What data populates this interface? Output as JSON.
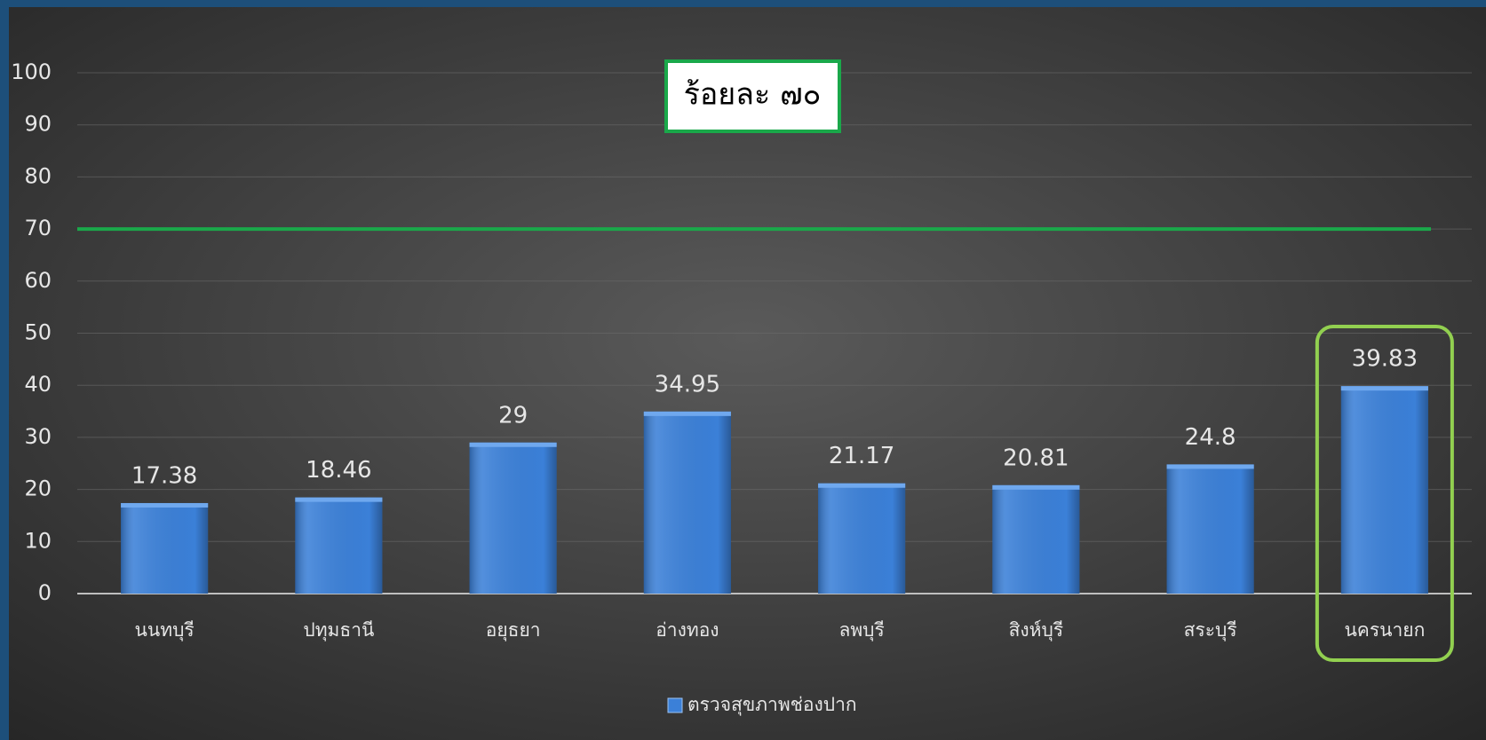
{
  "chart_data": {
    "type": "bar",
    "categories": [
      "นนทบุรี",
      "ปทุมธานี",
      "อยุธยา",
      "อ่างทอง",
      "ลพบุรี",
      "สิงห์บุรี",
      "สระบุรี",
      "นครนายก"
    ],
    "series": [
      {
        "name": "ตรวจสุขภาพช่องปาก",
        "color": "#3b80d8",
        "values": [
          17.38,
          18.46,
          29,
          34.95,
          21.17,
          20.81,
          24.8,
          39.83
        ]
      }
    ],
    "ylim": [
      0,
      100
    ],
    "yticks": [
      0,
      10,
      20,
      30,
      40,
      50,
      60,
      70,
      80,
      90,
      100
    ],
    "grid": true,
    "reference_line": {
      "value": 70,
      "label": "ร้อยละ ๗๐",
      "color": "#1aa84a"
    },
    "highlight_index": 7,
    "highlight_color": "#92d050",
    "legend": "bottom"
  }
}
